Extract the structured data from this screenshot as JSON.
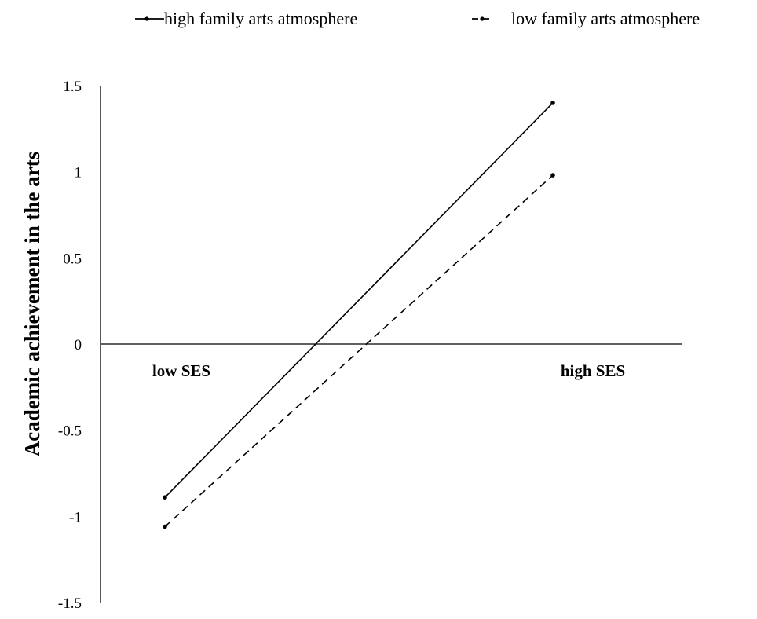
{
  "chart_data": {
    "type": "line",
    "title": "",
    "xlabel": "",
    "ylabel": "Academic achievement in the arts",
    "categories": [
      "low SES",
      "high SES"
    ],
    "ylim": [
      -1.5,
      1.5
    ],
    "yticks": [
      "1.5",
      "1",
      "0.5",
      "0",
      "-0.5",
      "-1",
      "-1.5"
    ],
    "ytick_values": [
      1.5,
      1,
      0.5,
      0,
      -0.5,
      -1,
      -1.5
    ],
    "legend_position": "top",
    "grid": false,
    "series": [
      {
        "name": "high family arts atmosphere",
        "values": [
          -0.89,
          1.4
        ],
        "style": "solid",
        "color": "#000000"
      },
      {
        "name": "low family arts atmosphere",
        "values": [
          -1.06,
          0.98
        ],
        "style": "dashed",
        "color": "#000000"
      }
    ]
  }
}
